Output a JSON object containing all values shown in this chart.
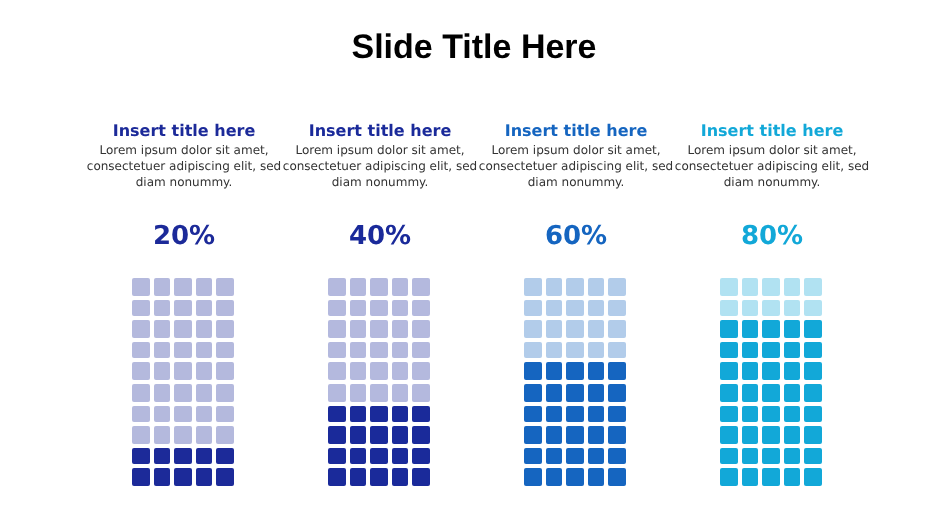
{
  "chart_data": {
    "type": "other",
    "title": "Slide Title Here",
    "categories": [
      "Insert title here",
      "Insert title here",
      "Insert title here",
      "Insert title here"
    ],
    "annotations": [
      "Lorem ipsum dolor sit amet, consectetuer adipiscing elit, sed diam nonummy.",
      "Lorem ipsum dolor sit amet, consectetuer adipiscing elit, sed diam nonummy.",
      "Lorem ipsum dolor sit amet, consectetuer adipiscing elit, sed diam nonummy.",
      "Lorem ipsum dolor sit amet, consectetuer adipiscing elit, sed diam nonummy."
    ],
    "values": [
      20,
      40,
      60,
      80
    ],
    "value_labels": [
      "20%",
      "40%",
      "60%",
      "80%"
    ],
    "colors": [
      "#1c2a99",
      "#1a2a9a",
      "#1565c0",
      "#12a8d8"
    ]
  }
}
